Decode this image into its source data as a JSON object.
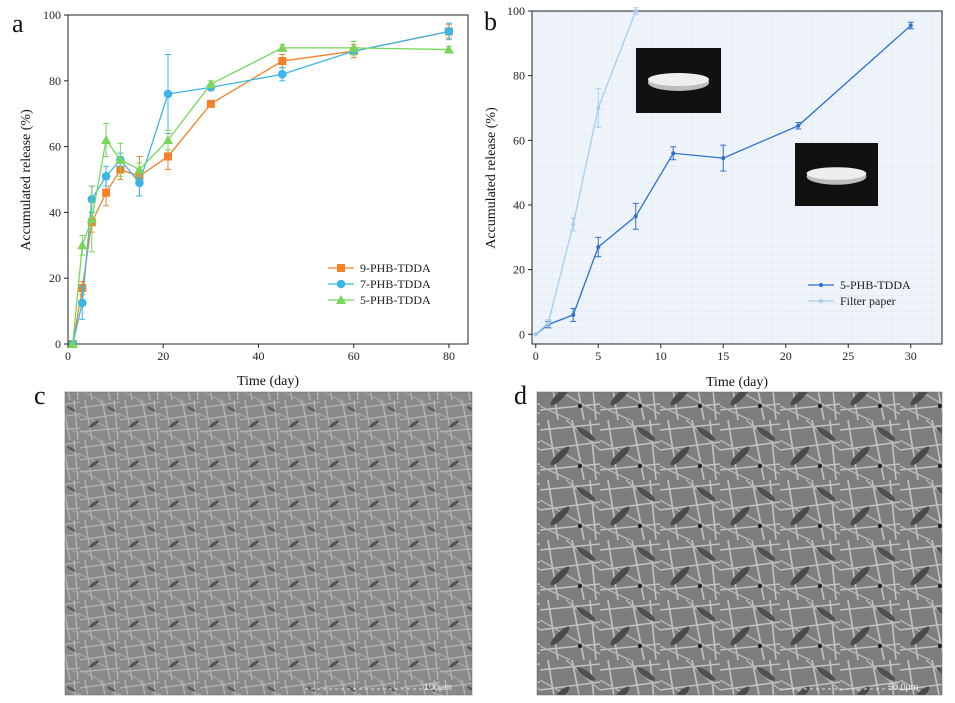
{
  "panels": {
    "a": "a",
    "b": "b",
    "c": "c",
    "d": "d"
  },
  "chart_data": [
    {
      "panel": "a",
      "type": "line",
      "xlabel": "Time (day)",
      "ylabel": "Accumulated release (%)",
      "xlim": [
        0,
        84
      ],
      "ylim": [
        0,
        100
      ],
      "xticks": [
        0,
        20,
        40,
        60,
        80
      ],
      "yticks": [
        0,
        20,
        40,
        60,
        80,
        100
      ],
      "grid": false,
      "legend_position": "bottom-right",
      "series": [
        {
          "name": "9-PHB-TDDA",
          "color": "#f28129",
          "marker": "square",
          "x": [
            1,
            3,
            5,
            8,
            11,
            15,
            21,
            30,
            45,
            60,
            80
          ],
          "y": [
            0,
            17,
            37,
            46,
            53,
            51,
            57,
            73,
            86,
            89,
            95
          ],
          "err": [
            0,
            2,
            3,
            4,
            3,
            6,
            4,
            1,
            2,
            2,
            2
          ]
        },
        {
          "name": "7-PHB-TDDA",
          "color": "#3cb6e8",
          "marker": "circle",
          "x": [
            1,
            3,
            5,
            8,
            11,
            15,
            21,
            30,
            45,
            60,
            80
          ],
          "y": [
            0,
            12.5,
            44,
            51,
            56,
            49,
            76,
            78,
            82,
            89,
            95
          ],
          "err": [
            0,
            5,
            4,
            3,
            2,
            4,
            12,
            1,
            2,
            1,
            2.5
          ]
        },
        {
          "name": "5-PHB-TDDA",
          "color": "#79d65a",
          "marker": "triangle",
          "x": [
            1,
            3,
            5,
            8,
            11,
            15,
            21,
            30,
            45,
            60,
            80
          ],
          "y": [
            0,
            30,
            38,
            62,
            56,
            53,
            62,
            79,
            90,
            90,
            89.5
          ],
          "err": [
            0,
            3,
            10,
            5,
            5,
            2,
            3,
            1,
            1,
            2,
            1
          ]
        }
      ]
    },
    {
      "panel": "b",
      "type": "line",
      "xlabel": "Time (day)",
      "ylabel": "Accumulated release (%)",
      "xlim": [
        -0.3,
        32.5
      ],
      "ylim": [
        -3,
        100
      ],
      "xticks": [
        0,
        5,
        10,
        15,
        20,
        25,
        30
      ],
      "yticks": [
        0,
        20,
        40,
        60,
        80,
        100
      ],
      "grid": true,
      "legend_position": "bottom-right",
      "series": [
        {
          "name": "5-PHB-TDDA",
          "color": "#2f6fd1",
          "marker": "dot",
          "x": [
            0,
            1,
            3,
            5,
            8,
            11,
            15,
            21,
            30
          ],
          "y": [
            0,
            3,
            6,
            27,
            36.5,
            56,
            54.5,
            64.5,
            95.5
          ],
          "err": [
            0,
            1,
            2,
            3,
            4,
            2,
            4,
            1,
            1
          ]
        },
        {
          "name": "Filter paper",
          "color": "#a8cdf0",
          "marker": "dot",
          "x": [
            0,
            1,
            3,
            5,
            8
          ],
          "y": [
            0,
            3.5,
            34,
            70,
            100
          ],
          "err": [
            0,
            1,
            2,
            6,
            1
          ]
        }
      ]
    }
  ],
  "images": {
    "c": {
      "scale_bar": "100μm"
    },
    "d": {
      "scale_bar": "50.0μm"
    }
  },
  "colors": {
    "axis": "#222222",
    "background": "#ffffff",
    "panel_b_bg": "#eef4fa"
  }
}
